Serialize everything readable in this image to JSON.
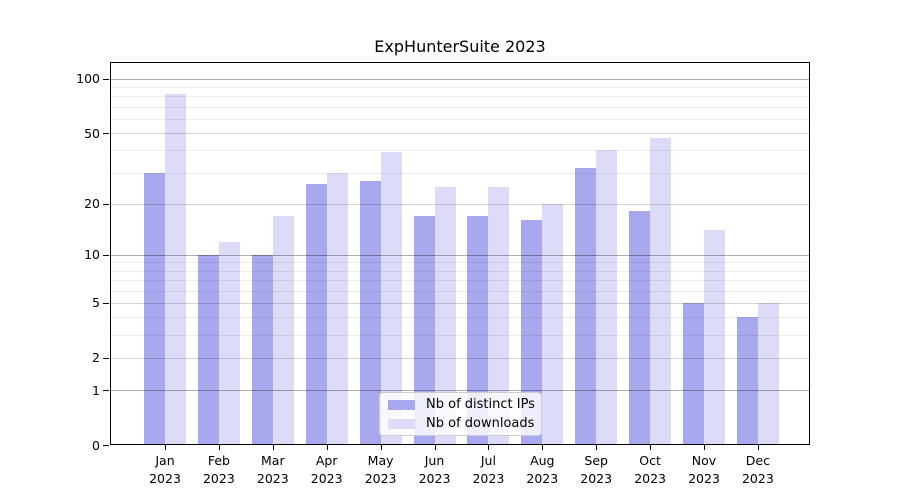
{
  "chart_data": {
    "type": "bar",
    "title": "ExpHunterSuite 2023",
    "categories": [
      "Jan",
      "Feb",
      "Mar",
      "Apr",
      "May",
      "Jun",
      "Jul",
      "Aug",
      "Sep",
      "Oct",
      "Nov",
      "Dec"
    ],
    "x_tick_second_line": "2023",
    "series": [
      {
        "name": "Nb of distinct IPs",
        "color": "#a8a8ee",
        "values": [
          30,
          10,
          10,
          26,
          27,
          17,
          17,
          16,
          32,
          18,
          5,
          4
        ]
      },
      {
        "name": "Nb of downloads",
        "color": "#dcdcf8",
        "values": [
          82,
          12,
          17,
          30,
          39,
          25,
          25,
          20,
          40,
          47,
          14,
          5
        ]
      }
    ],
    "y_ticks": [
      0,
      1,
      2,
      5,
      10,
      20,
      50,
      100
    ],
    "y_scale": "log1p",
    "ylim": [
      0,
      125
    ],
    "xlabel": "",
    "ylabel": "",
    "grid": true,
    "legend_position": "bottom-center"
  }
}
